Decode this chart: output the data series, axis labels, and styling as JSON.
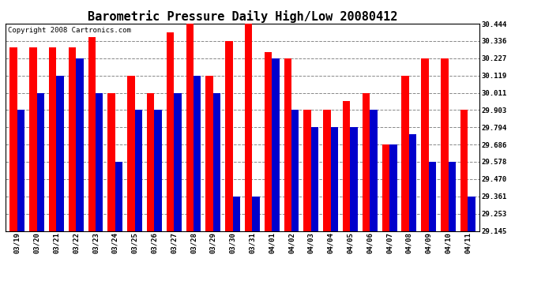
{
  "title": "Barometric Pressure Daily High/Low 20080412",
  "copyright": "Copyright 2008 Cartronics.com",
  "dates": [
    "03/19",
    "03/20",
    "03/21",
    "03/22",
    "03/23",
    "03/24",
    "03/25",
    "03/26",
    "03/27",
    "03/28",
    "03/29",
    "03/30",
    "03/31",
    "04/01",
    "04/02",
    "04/03",
    "04/04",
    "04/05",
    "04/06",
    "04/07",
    "04/08",
    "04/09",
    "04/10",
    "04/11"
  ],
  "highs": [
    30.297,
    30.297,
    30.297,
    30.297,
    30.36,
    30.011,
    30.119,
    30.011,
    30.39,
    30.444,
    30.119,
    30.336,
    30.444,
    30.267,
    30.227,
    29.903,
    29.903,
    29.96,
    30.011,
    29.686,
    30.119,
    30.227,
    30.227,
    29.903
  ],
  "lows": [
    29.903,
    30.011,
    30.119,
    30.227,
    30.011,
    29.578,
    29.903,
    29.903,
    30.011,
    30.119,
    30.011,
    29.361,
    29.361,
    30.227,
    29.903,
    29.794,
    29.794,
    29.794,
    29.903,
    29.686,
    29.75,
    29.578,
    29.578,
    29.361
  ],
  "high_color": "#ff0000",
  "low_color": "#0000cc",
  "bg_color": "#ffffff",
  "grid_color": "#888888",
  "ymin": 29.145,
  "ymax": 30.444,
  "yticks": [
    29.145,
    29.253,
    29.361,
    29.47,
    29.578,
    29.686,
    29.794,
    29.903,
    30.011,
    30.119,
    30.227,
    30.336,
    30.444
  ],
  "title_fontsize": 11,
  "copyright_fontsize": 6.5,
  "tick_fontsize": 6.5
}
